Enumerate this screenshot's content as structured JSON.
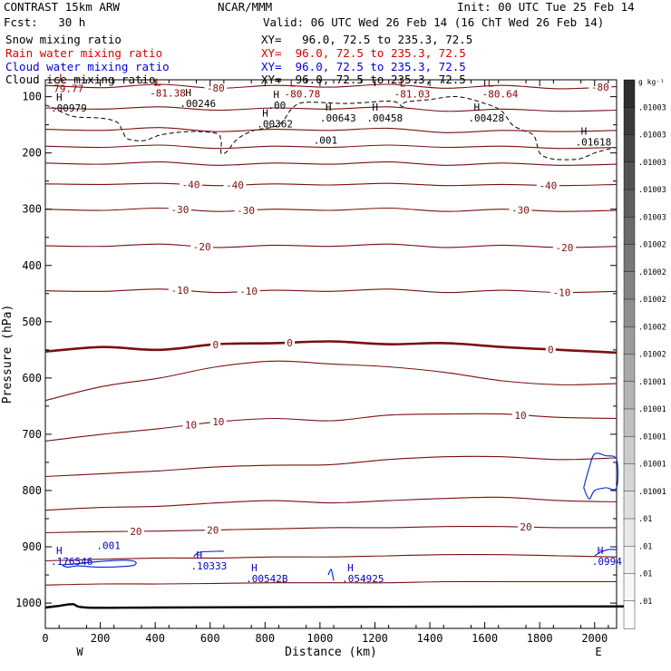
{
  "header": {
    "model": "CONTRAST 15km ARW",
    "org": "NCAR/MMM",
    "init": "Init: 00 UTC Tue 25 Feb 14",
    "fcst": "Fcst:   30 h",
    "valid": "Valid: 06 UTC Wed 26 Feb 14 (16 ChT Wed 26 Feb 14)"
  },
  "fields": [
    {
      "name": "Snow mixing ratio",
      "xy": "XY=   96.0, 72.5 to 235.3, 72.5",
      "color": "#000000"
    },
    {
      "name": "Rain water mixing ratio",
      "xy": "XY=  96.0, 72.5 to 235.3, 72.5",
      "color": "#dd0000"
    },
    {
      "name": "Cloud water mixing ratio",
      "xy": "XY=  96.0, 72.5 to 235.3, 72.5",
      "color": "#0000dd"
    },
    {
      "name": "Cloud ice mixing ratio",
      "xy": "XY=  96.0, 72.5 to 235.3, 72.5",
      "color": "#000000"
    }
  ],
  "colorbar": {
    "units": "g kg⁻¹",
    "labels": [
      ".01003",
      ".01003",
      ".01003",
      ".01003",
      ".01003",
      ".01002",
      ".01002",
      ".01002",
      ".01002",
      ".01002",
      ".01001",
      ".01001",
      ".01001",
      ".01001",
      ".01001",
      ".01",
      ".01",
      ".01",
      ".01"
    ],
    "shades": [
      "#2e2e2e",
      "#3a3a3a",
      "#474747",
      "#535353",
      "#5f5f5f",
      "#6b6b6b",
      "#777777",
      "#838383",
      "#8f8f8f",
      "#9b9b9b",
      "#a7a7a7",
      "#b3b3b3",
      "#bfbfbf",
      "#cbcbcb",
      "#d5d5d5",
      "#dfdfdf",
      "#e8e8e8",
      "#f0f0f0",
      "#f7f7f7",
      "#fcfcfc"
    ]
  },
  "chart_data": {
    "type": "line",
    "xlabel": "Distance (km)",
    "ylabel": "Pressure (hPa)",
    "xlim": [
      0,
      2080
    ],
    "ylim": [
      1045,
      70
    ],
    "x_ticks": [
      0,
      200,
      400,
      600,
      800,
      1000,
      1200,
      1400,
      1600,
      1800,
      2000
    ],
    "y_ticks": [
      100,
      200,
      300,
      400,
      500,
      600,
      700,
      800,
      900,
      1000
    ],
    "x_endpoints": {
      "left": "W",
      "right": "E"
    },
    "temperature_contours": [
      {
        "level": -80,
        "p": [
          80,
          84,
          78,
          85,
          80,
          83,
          78,
          85,
          80,
          86,
          82
        ],
        "labels": [
          {
            "x": 620,
            "text": "-80"
          },
          {
            "x": 2020,
            "text": "-80"
          }
        ]
      },
      {
        "level": -80,
        "p": [
          120,
          122,
          118,
          124,
          120,
          122,
          118,
          126,
          122,
          126,
          124
        ],
        "labels": []
      },
      {
        "level": -70,
        "p": [
          158,
          160,
          155,
          162,
          158,
          160,
          156,
          164,
          160,
          162,
          160
        ],
        "labels": []
      },
      {
        "level": -60,
        "p": [
          188,
          190,
          186,
          192,
          188,
          190,
          186,
          190,
          188,
          192,
          190
        ],
        "labels": []
      },
      {
        "level": -50,
        "p": [
          218,
          220,
          216,
          222,
          218,
          220,
          216,
          222,
          218,
          222,
          220
        ],
        "labels": []
      },
      {
        "level": -40,
        "p": [
          255,
          256,
          254,
          258,
          255,
          257,
          254,
          258,
          256,
          258,
          256
        ],
        "labels": [
          {
            "x": 530,
            "text": "-40"
          },
          {
            "x": 690,
            "text": "-40"
          },
          {
            "x": 1830,
            "text": "-40"
          }
        ]
      },
      {
        "level": -30,
        "p": [
          300,
          302,
          298,
          304,
          300,
          302,
          298,
          304,
          300,
          304,
          302
        ],
        "labels": [
          {
            "x": 490,
            "text": "-30"
          },
          {
            "x": 730,
            "text": "-30"
          },
          {
            "x": 1730,
            "text": "-30"
          }
        ]
      },
      {
        "level": -20,
        "p": [
          365,
          366,
          362,
          368,
          364,
          366,
          362,
          368,
          364,
          368,
          366
        ],
        "labels": [
          {
            "x": 570,
            "text": "-20"
          },
          {
            "x": 1890,
            "text": "-20"
          }
        ]
      },
      {
        "level": -10,
        "p": [
          445,
          446,
          442,
          448,
          444,
          446,
          442,
          448,
          444,
          448,
          446
        ],
        "labels": [
          {
            "x": 490,
            "text": "-10"
          },
          {
            "x": 740,
            "text": "-10"
          },
          {
            "x": 1880,
            "text": "-10"
          }
        ]
      },
      {
        "level": 0,
        "p": [
          553,
          545,
          550,
          540,
          538,
          535,
          540,
          538,
          545,
          550,
          555
        ],
        "labels": [
          {
            "x": 620,
            "text": "0"
          },
          {
            "x": 890,
            "text": "0"
          },
          {
            "x": 1840,
            "text": "0"
          }
        ],
        "emphasis": true
      },
      {
        "level": 10,
        "p": [
          640,
          615,
          600,
          580,
          570,
          575,
          580,
          590,
          605,
          612,
          610
        ],
        "labels": []
      },
      {
        "level": 10,
        "p": [
          712,
          700,
          690,
          678,
          672,
          676,
          666,
          664,
          664,
          670,
          672
        ],
        "labels": [
          {
            "x": 530,
            "text": "10"
          },
          {
            "x": 630,
            "text": "10"
          },
          {
            "x": 1730,
            "text": "10"
          }
        ]
      },
      {
        "level": 20,
        "p": [
          775,
          770,
          765,
          758,
          755,
          754,
          745,
          740,
          740,
          745,
          742
        ],
        "labels": []
      },
      {
        "level": 20,
        "p": [
          835,
          830,
          828,
          822,
          818,
          822,
          818,
          814,
          812,
          818,
          820
        ],
        "labels": []
      },
      {
        "level": 20,
        "p": [
          875,
          873,
          872,
          870,
          868,
          866,
          866,
          864,
          864,
          866,
          866
        ],
        "labels": [
          {
            "x": 330,
            "text": "20"
          },
          {
            "x": 610,
            "text": "20"
          },
          {
            "x": 1750,
            "text": "20"
          }
        ]
      },
      {
        "level": 20,
        "p": [
          925,
          922,
          920,
          920,
          918,
          918,
          916,
          914,
          914,
          916,
          918
        ],
        "labels": []
      },
      {
        "level": 30,
        "p": [
          968,
          966,
          966,
          965,
          964,
          964,
          964,
          962,
          962,
          962,
          962
        ],
        "labels": []
      }
    ],
    "surface_pressure": {
      "x": [
        0,
        50,
        100,
        150,
        400,
        1000,
        2000,
        2080
      ],
      "p": [
        1008,
        1005,
        1002,
        1008,
        1008,
        1007,
        1006,
        1006
      ]
    },
    "extrema": [
      {
        "kind": "L",
        "x": 30,
        "p": 85,
        "value": "79.77",
        "color": "#8b0000"
      },
      {
        "kind": "L",
        "x": 380,
        "p": 93,
        "value": "-81.38",
        "color": "#8b0000"
      },
      {
        "kind": "L",
        "x": 870,
        "p": 95,
        "value": "-80.78",
        "color": "#8b0000"
      },
      {
        "kind": "L",
        "x": 1270,
        "p": 95,
        "value": "-81.03",
        "color": "#8b0000"
      },
      {
        "kind": "L",
        "x": 1590,
        "p": 95,
        "value": "-80.64",
        "color": "#8b0000"
      },
      {
        "kind": "H",
        "x": 20,
        "p": 120,
        "value": ".00979",
        "color": "#000000"
      },
      {
        "kind": "H",
        "x": 490,
        "p": 112,
        "value": ".00246",
        "color": "#000000"
      },
      {
        "kind": "H",
        "x": 810,
        "p": 115,
        "value": ".00",
        "color": "#000000"
      },
      {
        "kind": "H",
        "x": 770,
        "p": 148,
        "value": ".00362",
        "color": "#000000"
      },
      {
        "kind": "H",
        "x": 1000,
        "p": 138,
        "value": ".00643",
        "color": "#000000"
      },
      {
        "kind": "H",
        "x": 1170,
        "p": 138,
        "value": ".00458",
        "color": "#000000"
      },
      {
        "kind": "H",
        "x": 1540,
        "p": 138,
        "value": ".00428",
        "color": "#000000"
      },
      {
        "kind": "H",
        "x": 1930,
        "p": 180,
        "value": ".01618",
        "color": "#000000"
      },
      {
        "kind": "H",
        "x": 20,
        "p": 926,
        "value": ".176546",
        "color": "#0000cc"
      },
      {
        "kind": "H",
        "x": 530,
        "p": 934,
        "value": ".10333",
        "color": "#0000cc"
      },
      {
        "kind": "H",
        "x": 730,
        "p": 956,
        "value": ".00542B",
        "color": "#0000cc"
      },
      {
        "kind": "H",
        "x": 1080,
        "p": 956,
        "value": ".054925",
        "color": "#0000cc"
      },
      {
        "kind": "H",
        "x": 1990,
        "p": 926,
        "value": ".0994",
        "color": "#0000cc"
      }
    ],
    "contour_labels": [
      {
        "text": ".001",
        "x": 1020,
        "p": 184,
        "color": "#000000"
      },
      {
        "text": ".001",
        "x": 230,
        "p": 904,
        "color": "#0000cc"
      }
    ],
    "cloud_ice_region": {
      "style": "dashed",
      "x": [
        0,
        30,
        100,
        200,
        260,
        280,
        300,
        360,
        420,
        520,
        620,
        640,
        640,
        660,
        700,
        760,
        850,
        900,
        950,
        1100,
        1260,
        1300,
        1310,
        1400,
        1500,
        1600,
        1660,
        1700,
        1740,
        1780,
        1800,
        1840,
        1900,
        1950,
        2000,
        2060,
        2080
      ],
      "p": [
        115,
        120,
        135,
        138,
        145,
        160,
        175,
        178,
        168,
        162,
        165,
        178,
        200,
        198,
        175,
        160,
        150,
        120,
        110,
        112,
        108,
        118,
        110,
        105,
        100,
        112,
        125,
        150,
        160,
        170,
        200,
        210,
        212,
        210,
        200,
        192,
        190
      ]
    },
    "cloud_water_regions": [
      {
        "x": [
          60,
          120,
          200,
          300,
          330,
          310,
          200,
          120,
          80,
          60
        ],
        "p": [
          932,
          930,
          926,
          924,
          928,
          934,
          936,
          934,
          936,
          932
        ]
      },
      {
        "x": [
          540,
          560,
          620,
          650
        ],
        "p": [
          918,
          910,
          908,
          908
        ]
      },
      {
        "x": [
          1030,
          1040,
          1045,
          1050
        ],
        "p": [
          950,
          940,
          948,
          960
        ]
      },
      {
        "x": [
          2000,
          2020,
          2050,
          2080
        ],
        "p": [
          916,
          910,
          905,
          905
        ]
      },
      {
        "x": [
          1960,
          1980,
          2000,
          2040,
          2080,
          2080,
          2040,
          2000,
          1980,
          1960
        ],
        "p": [
          795,
          760,
          735,
          738,
          745,
          795,
          795,
          800,
          815,
          795
        ]
      }
    ]
  }
}
